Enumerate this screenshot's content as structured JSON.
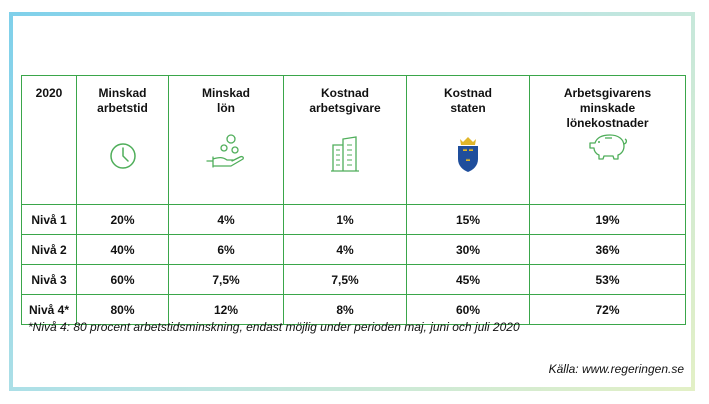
{
  "table": {
    "year_header": "2020",
    "columns": [
      {
        "label": "Minskad\narbetstid",
        "icon": "clock-icon"
      },
      {
        "label": "Minskad\nlön",
        "icon": "hand-with-coins-icon"
      },
      {
        "label": "Kostnad\narbetsgivare",
        "icon": "office-building-icon"
      },
      {
        "label": "Kostnad\nstaten",
        "icon": "swedish-coat-of-arms-icon"
      },
      {
        "label": "Arbetsgivarens\nminskade\nlönekostnader",
        "icon": "piggy-bank-icon"
      }
    ],
    "rows": [
      {
        "level": "Nivå 1",
        "values": [
          "20%",
          "4%",
          "1%",
          "15%",
          "19%"
        ]
      },
      {
        "level": "Nivå 2",
        "values": [
          "40%",
          "6%",
          "4%",
          "30%",
          "36%"
        ]
      },
      {
        "level": "Nivå 3",
        "values": [
          "60%",
          "7,5%",
          "7,5%",
          "45%",
          "53%"
        ]
      },
      {
        "level": "Nivå 4*",
        "values": [
          "80%",
          "12%",
          "8%",
          "60%",
          "72%"
        ]
      }
    ]
  },
  "footnote": "*Nivå 4: 80 procent arbetstidsminskning, endast möjlig under perioden maj, juni och juli 2020",
  "source": "Källa: www.regeringen.se",
  "colors": {
    "border": "#3aa64a",
    "icon_green": "#4fae5a",
    "crest_blue": "#1f4e9c",
    "crest_gold": "#e0b62a"
  }
}
